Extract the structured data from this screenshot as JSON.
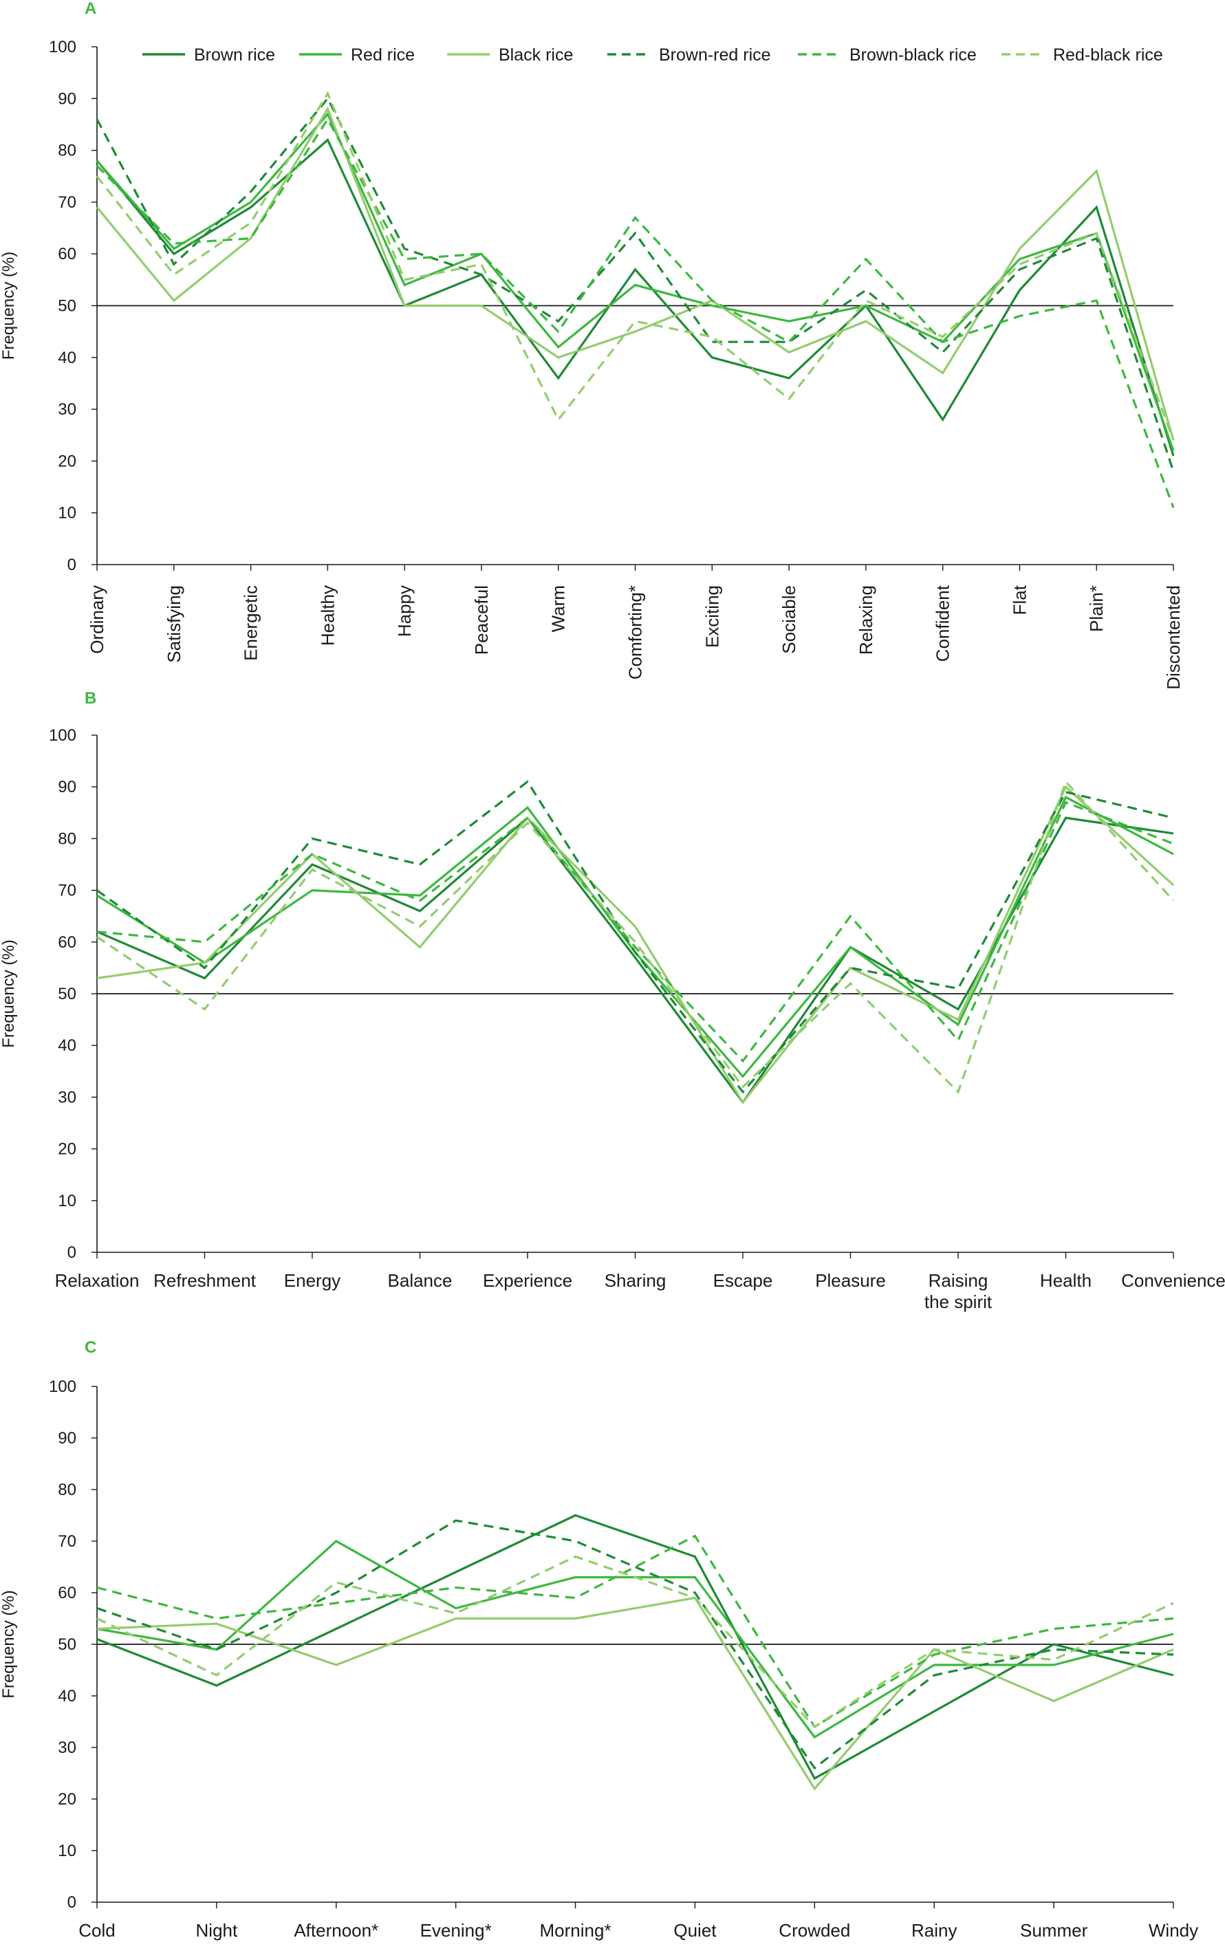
{
  "colors": {
    "brown": "#1e8a36",
    "red": "#3db83f",
    "black": "#93cd6e",
    "refline": "#1a1a1a",
    "axis": "#1a1a1a",
    "panel_letter": "#3db83f"
  },
  "legend": [
    {
      "name": "Brown rice",
      "color": "#1e8a36",
      "dashed": false
    },
    {
      "name": "Red rice",
      "color": "#3db83f",
      "dashed": false
    },
    {
      "name": "Black rice",
      "color": "#93cd6e",
      "dashed": false
    },
    {
      "name": "Brown-red rice",
      "color": "#1e8a36",
      "dashed": true
    },
    {
      "name": "Brown-black rice",
      "color": "#3db83f",
      "dashed": true
    },
    {
      "name": "Red-black rice",
      "color": "#93cd6e",
      "dashed": true
    }
  ],
  "chart_data": [
    {
      "panel": "A",
      "type": "line",
      "ylabel": "Frequency (%)",
      "ylim": [
        0,
        100
      ],
      "yticks": [
        0,
        10,
        20,
        30,
        40,
        50,
        60,
        70,
        80,
        90,
        100
      ],
      "reference_line": 50,
      "category_label_style": "rotated",
      "categories": [
        "Ordinary",
        "Satisfying",
        "Energetic",
        "Healthy",
        "Happy",
        "Peaceful",
        "Warm",
        "Comforting*",
        "Exciting",
        "Sociable",
        "Relaxing",
        "Confident",
        "Flat",
        "Plain*",
        "Discontented"
      ],
      "series": [
        {
          "name": "Brown rice",
          "values": [
            78,
            60,
            69,
            82,
            50,
            56,
            36,
            57,
            40,
            36,
            50,
            28,
            53,
            69,
            21
          ]
        },
        {
          "name": "Red rice",
          "values": [
            78,
            61,
            70,
            87,
            54,
            60,
            42,
            54,
            50,
            47,
            50,
            43,
            59,
            64,
            22
          ]
        },
        {
          "name": "Black rice",
          "values": [
            69,
            51,
            63,
            88,
            50,
            50,
            40,
            45,
            51,
            41,
            47,
            37,
            61,
            76,
            24
          ]
        },
        {
          "name": "Brown-red rice",
          "values": [
            86,
            58,
            72,
            90,
            61,
            56,
            47,
            64,
            43,
            43,
            53,
            41,
            57,
            63,
            18
          ]
        },
        {
          "name": "Brown-black rice",
          "values": [
            77,
            62,
            63,
            86,
            59,
            60,
            45,
            67,
            51,
            43,
            59,
            43,
            48,
            51,
            11
          ]
        },
        {
          "name": "Red-black rice",
          "values": [
            75,
            56,
            66,
            91,
            55,
            58,
            28,
            47,
            44,
            32,
            51,
            44,
            58,
            64,
            24
          ]
        }
      ]
    },
    {
      "panel": "B",
      "type": "line",
      "ylabel": "Frequency (%)",
      "ylim": [
        0,
        100
      ],
      "yticks": [
        0,
        10,
        20,
        30,
        40,
        50,
        60,
        70,
        80,
        90,
        100
      ],
      "reference_line": 50,
      "category_label_style": "horizontal",
      "categories": [
        "Relaxation",
        "Refreshment",
        "Energy",
        "Balance",
        "Experience",
        "Sharing",
        "Escape",
        "Pleasure",
        "Raising the spirit",
        "Health",
        "Convenience"
      ],
      "series": [
        {
          "name": "Brown rice",
          "values": [
            62,
            53,
            75,
            66,
            84,
            57,
            29,
            59,
            47,
            84,
            81
          ]
        },
        {
          "name": "Red rice",
          "values": [
            69,
            56,
            70,
            69,
            86,
            58,
            34,
            59,
            44,
            88,
            77
          ]
        },
        {
          "name": "Black rice",
          "values": [
            53,
            56,
            77,
            59,
            84,
            63,
            29,
            55,
            45,
            90,
            71
          ]
        },
        {
          "name": "Brown-red rice",
          "values": [
            70,
            55,
            80,
            75,
            91,
            58,
            31,
            55,
            51,
            89,
            84
          ]
        },
        {
          "name": "Brown-black rice",
          "values": [
            62,
            60,
            77,
            68,
            84,
            59,
            37,
            65,
            41,
            87,
            79
          ]
        },
        {
          "name": "Red-black rice",
          "values": [
            61,
            47,
            74,
            63,
            83,
            60,
            32,
            52,
            31,
            91,
            68
          ]
        }
      ]
    },
    {
      "panel": "C",
      "type": "line",
      "ylabel": "Frequency (%)",
      "ylim": [
        0,
        100
      ],
      "yticks": [
        0,
        10,
        20,
        30,
        40,
        50,
        60,
        70,
        80,
        90,
        100
      ],
      "reference_line": 50,
      "category_label_style": "horizontal",
      "categories": [
        "Cold",
        "Night",
        "Afternoon*",
        "Evening*",
        "Morning*",
        "Quiet",
        "Crowded",
        "Rainy",
        "Summer",
        "Windy"
      ],
      "series": [
        {
          "name": "Brown rice",
          "values": [
            51,
            42,
            53,
            64,
            75,
            67,
            24,
            37,
            50,
            44
          ]
        },
        {
          "name": "Red rice",
          "values": [
            53,
            49,
            70,
            57,
            63,
            63,
            32,
            46,
            46,
            52
          ]
        },
        {
          "name": "Black rice",
          "values": [
            53,
            54,
            46,
            55,
            55,
            59,
            22,
            49,
            39,
            49
          ]
        },
        {
          "name": "Brown-red rice",
          "values": [
            57,
            49,
            60,
            74,
            70,
            60,
            26,
            44,
            49,
            48
          ]
        },
        {
          "name": "Brown-black rice",
          "values": [
            61,
            55,
            58,
            61,
            59,
            71,
            34,
            48,
            53,
            55
          ]
        },
        {
          "name": "Red-black rice",
          "values": [
            55,
            44,
            62,
            56,
            67,
            59,
            34,
            49,
            47,
            58
          ]
        }
      ]
    }
  ]
}
